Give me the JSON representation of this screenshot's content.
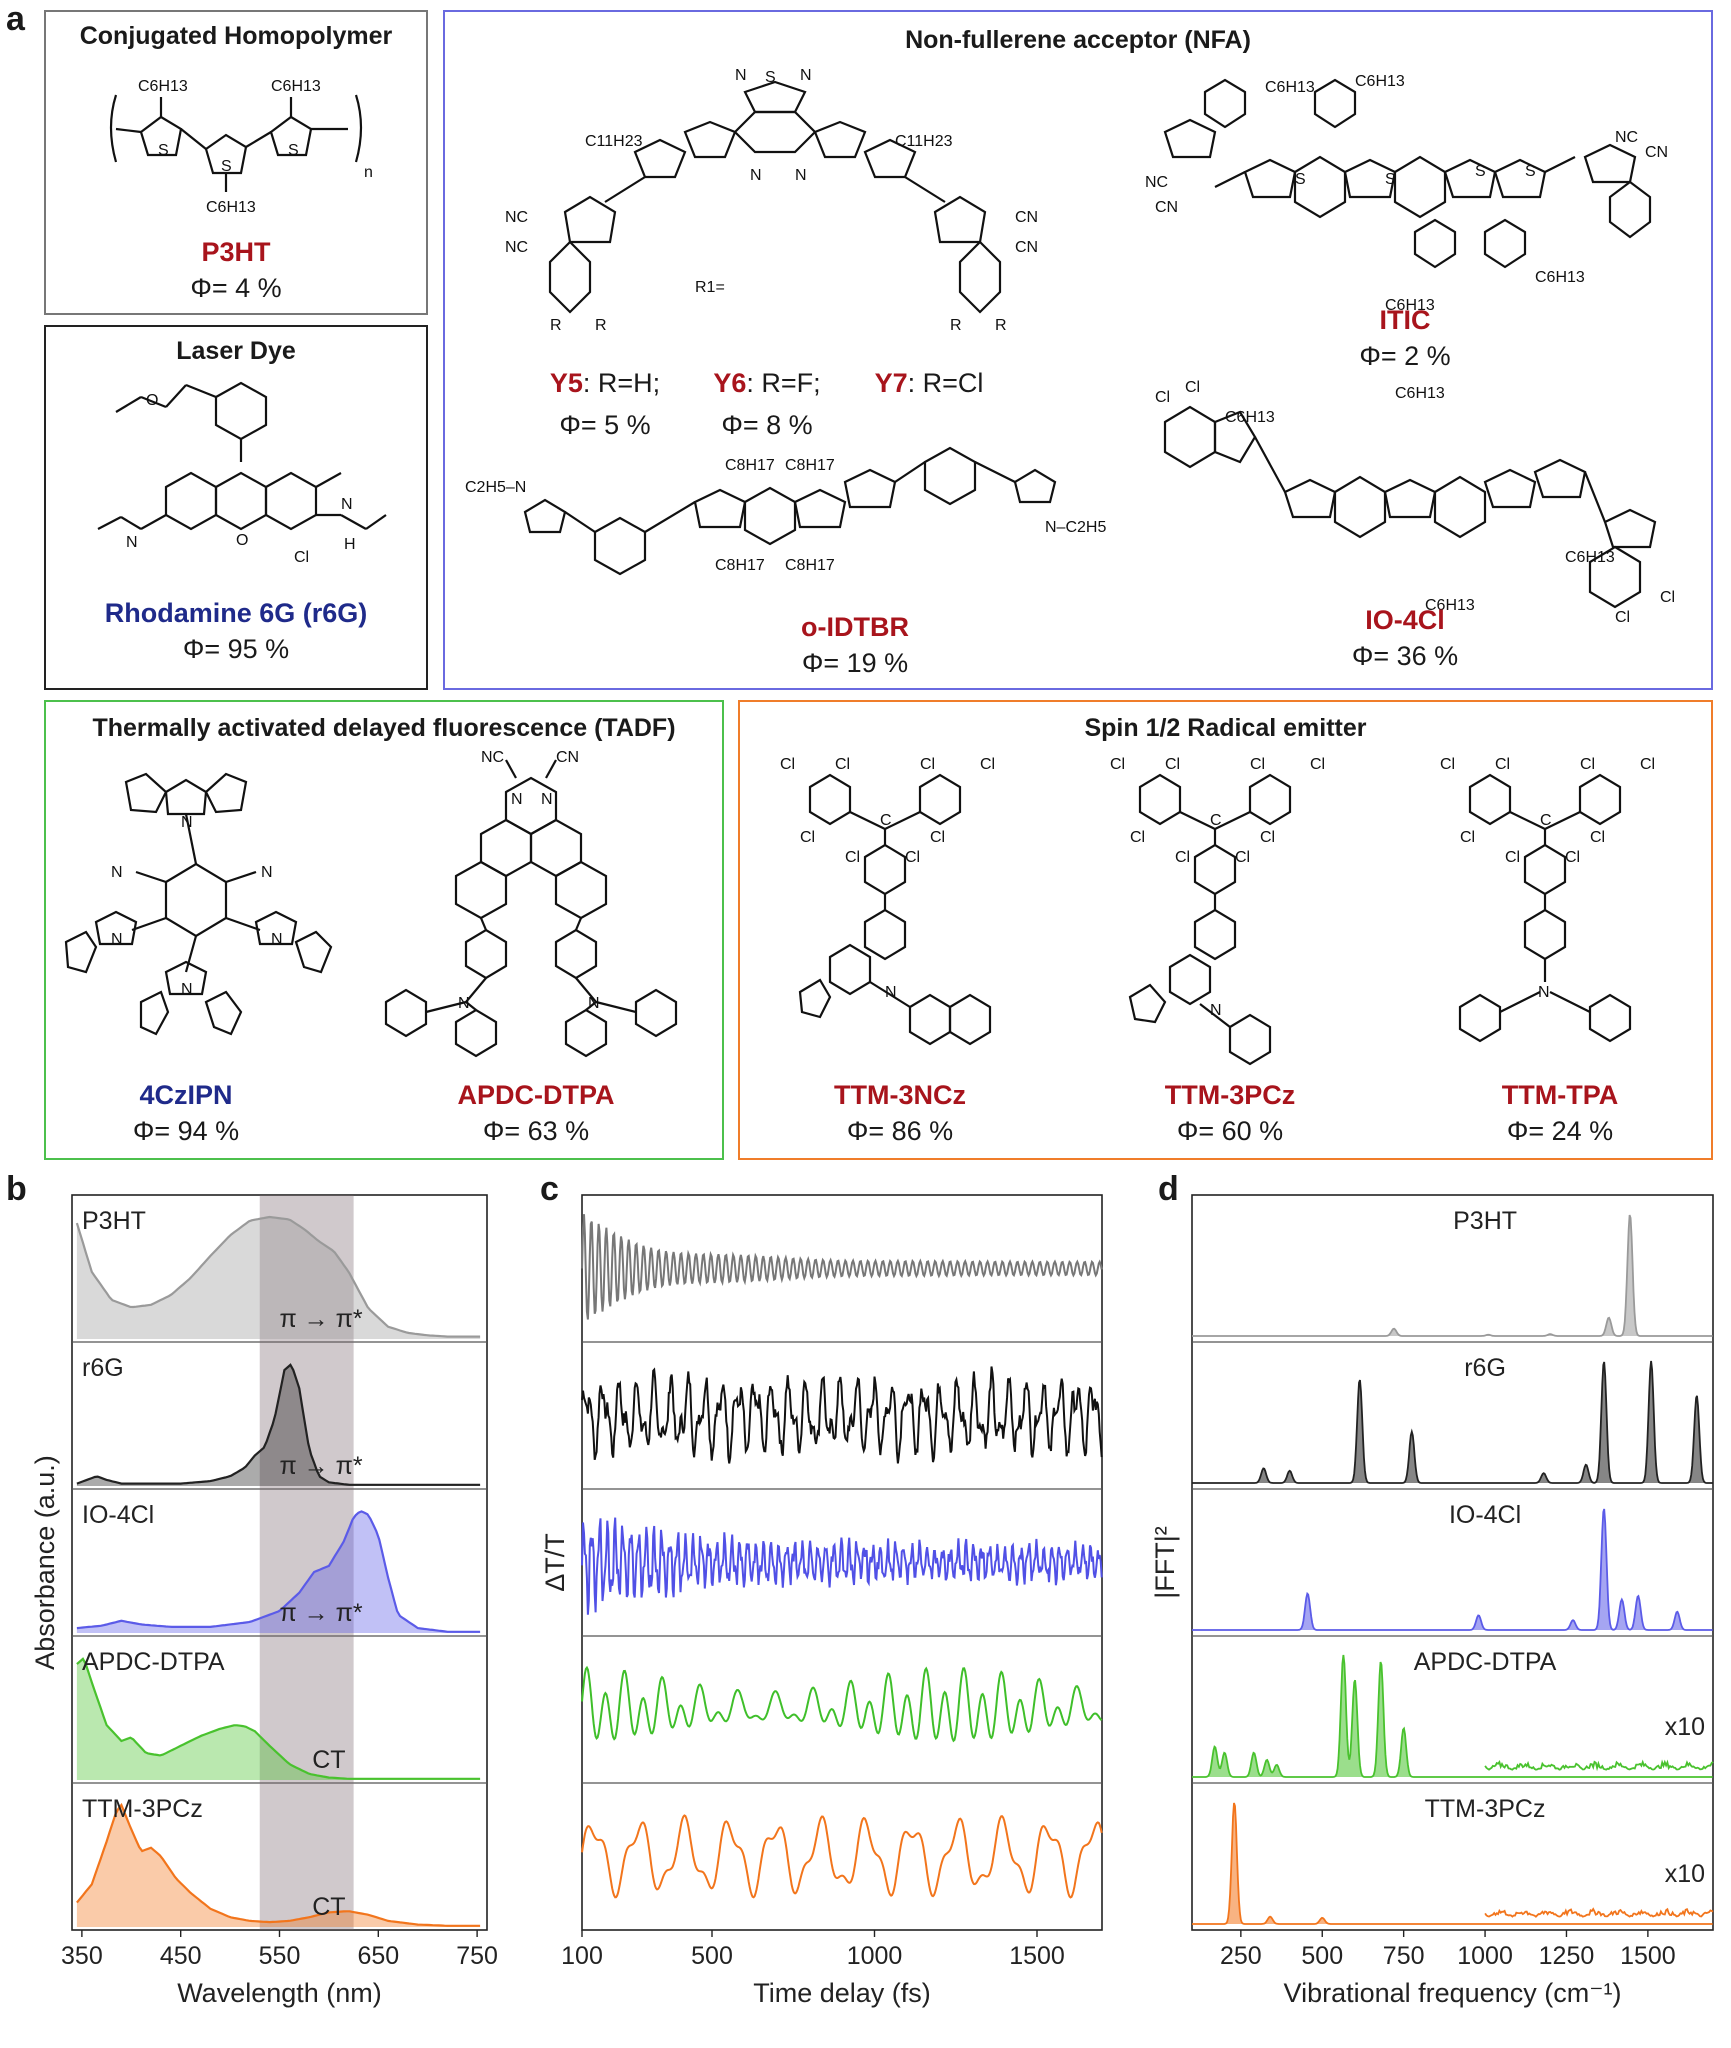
{
  "panel_a": {
    "letter": "a",
    "homopolymer": {
      "title": "Conjugated Homopolymer",
      "name": "P3HT",
      "phi": "Φ= 4 %",
      "sub_c6": "C6H13",
      "sub_n": "n"
    },
    "laser_dye": {
      "title": "Laser Dye",
      "name": "Rhodamine 6G (r6G)",
      "phi": "Φ= 95 %",
      "cl": "Cl",
      "h": "H",
      "n": "N",
      "o": "O"
    },
    "nfa": {
      "title": "Non-fullerene acceptor (NFA)",
      "y_series": [
        {
          "name": "Y5",
          "sub": ": R=H;",
          "phi": "Φ= 5 %"
        },
        {
          "name": "Y6",
          "sub": ": R=F;",
          "phi": "Φ= 8 %"
        },
        {
          "name": "Y7",
          "sub": ": R=Cl",
          "phi": ""
        }
      ],
      "r1_label": "R1=",
      "itic": {
        "name": "ITIC",
        "phi": "Φ= 2 %"
      },
      "idtbr": {
        "name": "o-IDTBR",
        "phi": "Φ= 19 %"
      },
      "io4cl": {
        "name": "IO-4Cl",
        "phi": "Φ= 36 %"
      }
    },
    "tadf": {
      "title": "Thermally activated delayed fluorescence (TADF)",
      "mol1": {
        "name": "4CzIPN",
        "phi": "Φ= 94 %"
      },
      "mol2": {
        "name": "APDC-DTPA",
        "phi": "Φ= 63 %"
      }
    },
    "radical": {
      "title": "Spin 1/2 Radical emitter",
      "mol1": {
        "name": "TTM-3NCz",
        "phi": "Φ= 86 %"
      },
      "mol2": {
        "name": "TTM-3PCz",
        "phi": "Φ= 60 %"
      },
      "mol3": {
        "name": "TTM-TPA",
        "phi": "Φ= 24 %"
      }
    }
  },
  "chart_data": [
    {
      "type": "area",
      "panel": "b",
      "xlabel": "Wavelength (nm)",
      "ylabel": "Absorbance (a.u.)",
      "xlim": [
        340,
        760
      ],
      "xticks": [
        350,
        450,
        550,
        650,
        750
      ],
      "xticklabels": [
        "350",
        "450",
        "550",
        "650",
        "750"
      ],
      "shaded_band": [
        530,
        625
      ],
      "series": [
        {
          "name": "P3HT",
          "color": "#9a9a9a",
          "annotation": "π → π*",
          "x": [
            345,
            360,
            380,
            400,
            420,
            440,
            460,
            480,
            500,
            520,
            540,
            560,
            575,
            590,
            605,
            620,
            640,
            660,
            680,
            700,
            720,
            740,
            750
          ],
          "y": [
            0.95,
            0.55,
            0.32,
            0.26,
            0.28,
            0.36,
            0.5,
            0.68,
            0.85,
            0.97,
            1.0,
            0.98,
            0.9,
            0.8,
            0.72,
            0.55,
            0.25,
            0.1,
            0.05,
            0.03,
            0.02,
            0.02,
            0.02
          ]
        },
        {
          "name": "r6G",
          "color": "#222222",
          "annotation": "π → π*",
          "x": [
            345,
            355,
            365,
            375,
            390,
            420,
            450,
            480,
            500,
            515,
            525,
            535,
            545,
            555,
            562,
            570,
            580,
            590,
            600,
            620,
            660,
            700,
            750
          ],
          "y": [
            0.02,
            0.05,
            0.08,
            0.05,
            0.02,
            0.02,
            0.02,
            0.04,
            0.08,
            0.15,
            0.25,
            0.32,
            0.55,
            0.95,
            1.0,
            0.8,
            0.3,
            0.08,
            0.03,
            0.01,
            0.01,
            0.01,
            0.01
          ]
        },
        {
          "name": "IO-4Cl",
          "color": "#5b5be8",
          "annotation": "π → π*",
          "x": [
            345,
            370,
            390,
            410,
            440,
            480,
            520,
            550,
            570,
            585,
            600,
            615,
            625,
            632,
            640,
            650,
            660,
            670,
            690,
            720,
            750
          ],
          "y": [
            0.04,
            0.06,
            0.1,
            0.07,
            0.05,
            0.05,
            0.09,
            0.18,
            0.33,
            0.5,
            0.55,
            0.75,
            0.95,
            1.0,
            0.97,
            0.8,
            0.45,
            0.15,
            0.04,
            0.01,
            0.01
          ]
        },
        {
          "name": "APDC-DTPA",
          "color": "#49c22e",
          "annotation": "CT",
          "x": [
            345,
            352,
            360,
            375,
            390,
            400,
            415,
            430,
            450,
            470,
            490,
            505,
            515,
            525,
            540,
            560,
            580,
            600,
            620,
            660,
            700,
            750
          ],
          "y": [
            0.95,
            1.0,
            0.8,
            0.45,
            0.32,
            0.35,
            0.22,
            0.2,
            0.28,
            0.36,
            0.42,
            0.45,
            0.44,
            0.4,
            0.28,
            0.13,
            0.05,
            0.02,
            0.01,
            0.01,
            0.01,
            0.01
          ]
        },
        {
          "name": "TTM-3PCz",
          "color": "#f2751c",
          "annotation": "CT",
          "x": [
            345,
            360,
            375,
            385,
            390,
            400,
            410,
            420,
            430,
            445,
            460,
            480,
            500,
            520,
            540,
            560,
            580,
            600,
            620,
            640,
            660,
            690,
            720,
            750
          ],
          "y": [
            0.2,
            0.35,
            0.7,
            0.95,
            1.0,
            0.8,
            0.62,
            0.65,
            0.58,
            0.4,
            0.28,
            0.15,
            0.08,
            0.05,
            0.04,
            0.05,
            0.08,
            0.12,
            0.13,
            0.1,
            0.05,
            0.02,
            0.01,
            0.01
          ]
        }
      ]
    },
    {
      "type": "line",
      "panel": "c",
      "xlabel": "Time delay (fs)",
      "ylabel": "ΔT/T",
      "xlim": [
        100,
        1700
      ],
      "xticks": [
        100,
        500,
        1000,
        1500
      ],
      "xticklabels": [
        "100",
        "500",
        "1000",
        "1500"
      ],
      "series": [
        {
          "name": "P3HT",
          "color": "#777777",
          "style": "damped",
          "period_fs": 23,
          "amplitude": 0.9,
          "decay_fs": 260,
          "floor": 0.12
        },
        {
          "name": "r6G",
          "color": "#111111",
          "style": "noisy",
          "period_fs": 52,
          "amplitude": 0.75
        },
        {
          "name": "IO-4Cl",
          "color": "#5050e6",
          "style": "noisy-damped",
          "period_fs": 24,
          "amplitude": 0.9
        },
        {
          "name": "APDC-DTPA",
          "color": "#3fbf2a",
          "style": "beat",
          "period_fs": 58,
          "amplitude": 0.8
        },
        {
          "name": "TTM-3PCz",
          "color": "#f2751c",
          "style": "slow",
          "period_fs": 140,
          "amplitude": 0.7
        }
      ]
    },
    {
      "type": "area",
      "panel": "d",
      "xlabel": "Vibrational frequency (cm⁻¹)",
      "ylabel": "|FFT|²",
      "xlim": [
        100,
        1700
      ],
      "xticks": [
        250,
        500,
        750,
        1000,
        1250,
        1500
      ],
      "xticklabels": [
        "250",
        "500",
        "750",
        "1000",
        "1250",
        "1500"
      ],
      "series": [
        {
          "name": "P3HT",
          "color": "#9a9a9a",
          "peaks": [
            [
              720,
              0.06
            ],
            [
              1380,
              0.15
            ],
            [
              1445,
              1.0
            ],
            [
              1010,
              0.01
            ],
            [
              1200,
              0.015
            ]
          ]
        },
        {
          "name": "r6G",
          "color": "#222222",
          "peaks": [
            [
              320,
              0.12
            ],
            [
              400,
              0.1
            ],
            [
              615,
              0.85
            ],
            [
              775,
              0.42
            ],
            [
              1180,
              0.08
            ],
            [
              1310,
              0.15
            ],
            [
              1365,
              1.0
            ],
            [
              1510,
              1.0
            ],
            [
              1650,
              0.72
            ]
          ]
        },
        {
          "name": "IO-4Cl",
          "color": "#5b5be8",
          "peaks": [
            [
              455,
              0.3
            ],
            [
              980,
              0.12
            ],
            [
              1270,
              0.08
            ],
            [
              1365,
              1.0
            ],
            [
              1420,
              0.25
            ],
            [
              1470,
              0.28
            ],
            [
              1590,
              0.15
            ]
          ]
        },
        {
          "name": "APDC-DTPA",
          "color": "#49c22e",
          "scale_note": "x10",
          "peaks": [
            [
              170,
              0.25
            ],
            [
              200,
              0.2
            ],
            [
              290,
              0.2
            ],
            [
              330,
              0.14
            ],
            [
              360,
              0.1
            ],
            [
              565,
              1.0
            ],
            [
              600,
              0.8
            ],
            [
              680,
              0.95
            ],
            [
              750,
              0.4
            ]
          ]
        },
        {
          "name": "TTM-3PCz",
          "color": "#f2751c",
          "scale_note": "x10",
          "peaks": [
            [
              230,
              1.0
            ],
            [
              340,
              0.06
            ],
            [
              500,
              0.05
            ]
          ]
        }
      ]
    }
  ]
}
